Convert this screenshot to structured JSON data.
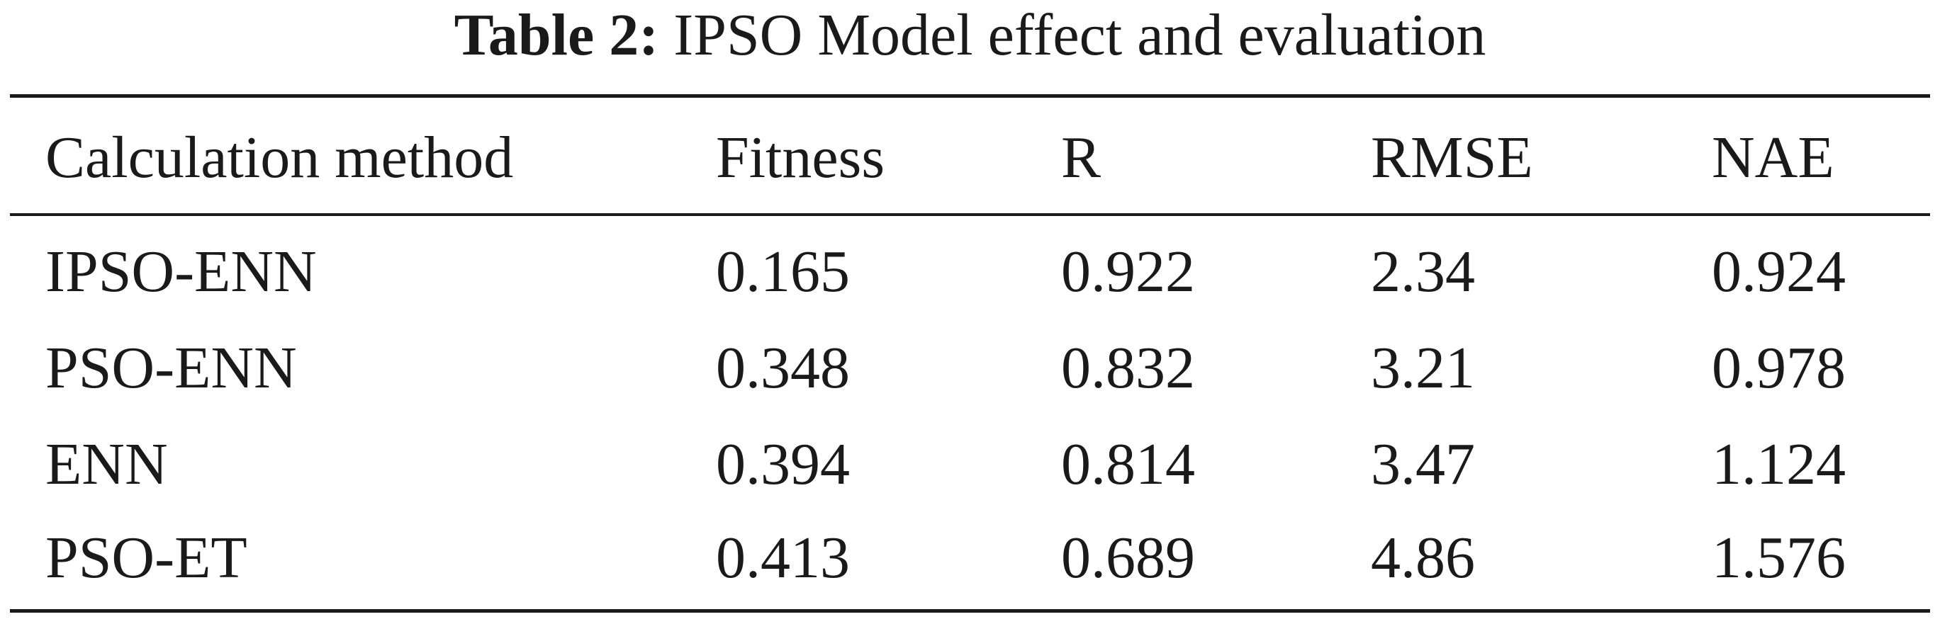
{
  "caption": {
    "label": "Table 2:",
    "title": "IPSO Model effect and evaluation"
  },
  "table": {
    "headers": [
      "Calculation method",
      "Fitness",
      "R",
      "RMSE",
      "NAE"
    ],
    "rows": [
      [
        "IPSO-ENN",
        "0.165",
        "0.922",
        "2.34",
        "0.924"
      ],
      [
        "PSO-ENN",
        "0.348",
        "0.832",
        "3.21",
        "0.978"
      ],
      [
        "ENN",
        "0.394",
        "0.814",
        "3.47",
        "1.124"
      ],
      [
        "PSO-ET",
        "0.413",
        "0.689",
        "4.86",
        "1.576"
      ]
    ]
  }
}
